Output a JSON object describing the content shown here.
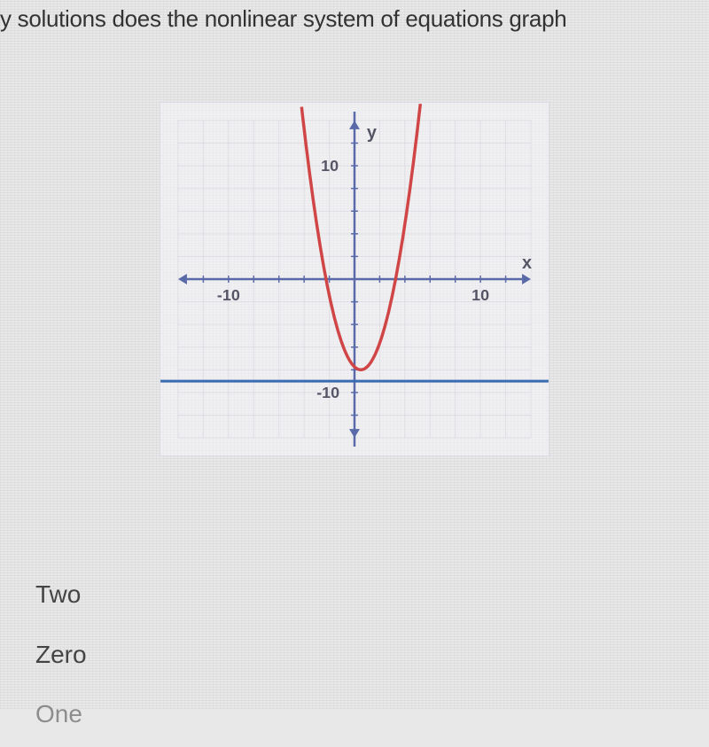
{
  "question": "y solutions does the nonlinear system of equations graph",
  "graph": {
    "type": "coordinate-plot",
    "background_color": "#f4f4f8",
    "grid_color": "#c8c8d4",
    "axis_color": "#5a6aa8",
    "x_range": [
      -14,
      14
    ],
    "y_range": [
      -14,
      14
    ],
    "tick_spacing": 2,
    "tick_labels": {
      "x_neg": {
        "value": "-10",
        "pos": -10
      },
      "x_pos": {
        "value": "10",
        "pos": 10
      },
      "y_pos": {
        "value": "10",
        "pos": 10
      },
      "y_neg": {
        "value": "-10",
        "pos": -10
      }
    },
    "axis_labels": {
      "x": "x",
      "y": "y"
    },
    "curves": {
      "parabola": {
        "type": "parabola",
        "color": "#d04545",
        "line_width": 3.5,
        "vertex": {
          "x": 0.5,
          "y": -8
        },
        "coefficient": 1.05
      },
      "horizontal_line": {
        "type": "line",
        "color": "#3a6ab0",
        "line_width": 3,
        "y": -9
      }
    },
    "arrows": {
      "size": 10,
      "color": "#5a6aa8"
    }
  },
  "answers": {
    "a": "Two",
    "b": "Zero",
    "c": "One"
  }
}
